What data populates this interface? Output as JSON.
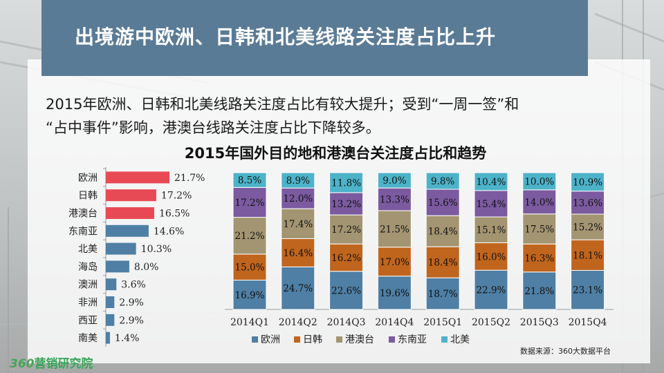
{
  "title": "出境游中欧洲、日韩和北美线路关注度占比上升",
  "description": {
    "line1": "2015年欧洲、日韩和北美线路关注度占比有较大提升；受到“一周一签”和",
    "line2": "“占中事件”影响，港澳台线路关注度占比下降较多。"
  },
  "source": "数据来源：360大数据平台",
  "logo": {
    "number": "360",
    "text": "营销研究院"
  },
  "colors": {
    "title_bar": "#5a7b96",
    "hbar_red": "#e84a55",
    "hbar_blue": "#4f7fa4",
    "europe": "#4f7fa4",
    "jpkr": "#c0651d",
    "hmt": "#a39572",
    "sea": "#7b5aa0",
    "na": "#4cb3c9"
  },
  "chart_data": [
    {
      "type": "bar",
      "orientation": "horizontal",
      "categories": [
        "欧洲",
        "日韩",
        "港澳台",
        "东南亚",
        "北美",
        "海岛",
        "澳洲",
        "非洲",
        "西亚",
        "南美"
      ],
      "values": [
        21.7,
        17.2,
        16.5,
        14.6,
        10.3,
        8.0,
        3.6,
        2.9,
        2.9,
        1.4
      ],
      "value_labels": [
        "21.7%",
        "17.2%",
        "16.5%",
        "14.6%",
        "10.3%",
        "8.0%",
        "3.6%",
        "2.9%",
        "2.9%",
        "1.4%"
      ],
      "highlighted": [
        "欧洲",
        "日韩",
        "港澳台"
      ],
      "xlim": [
        0,
        25
      ]
    },
    {
      "type": "bar",
      "stacked": true,
      "percent": true,
      "title": "2015年国外目的地和港澳台关注度占比和趋势",
      "categories": [
        "2014Q1",
        "2014Q2",
        "2014Q3",
        "2014Q4",
        "2015Q1",
        "2015Q2",
        "2015Q3",
        "2015Q4"
      ],
      "series": [
        {
          "name": "欧洲",
          "values": [
            16.9,
            24.7,
            22.6,
            19.6,
            18.7,
            22.9,
            21.8,
            23.1
          ]
        },
        {
          "name": "日韩",
          "values": [
            15.0,
            16.4,
            16.2,
            17.0,
            18.4,
            16.0,
            16.3,
            18.1
          ]
        },
        {
          "name": "港澳台",
          "values": [
            21.2,
            17.4,
            17.2,
            21.5,
            18.4,
            15.1,
            17.5,
            15.2
          ]
        },
        {
          "name": "东南亚",
          "values": [
            17.2,
            12.0,
            13.2,
            13.3,
            15.6,
            15.4,
            14.0,
            13.6
          ]
        },
        {
          "name": "北美",
          "values": [
            8.5,
            8.9,
            11.8,
            9.0,
            9.8,
            10.4,
            10.0,
            10.9
          ]
        }
      ],
      "legend": "bottom",
      "grid": false
    }
  ]
}
